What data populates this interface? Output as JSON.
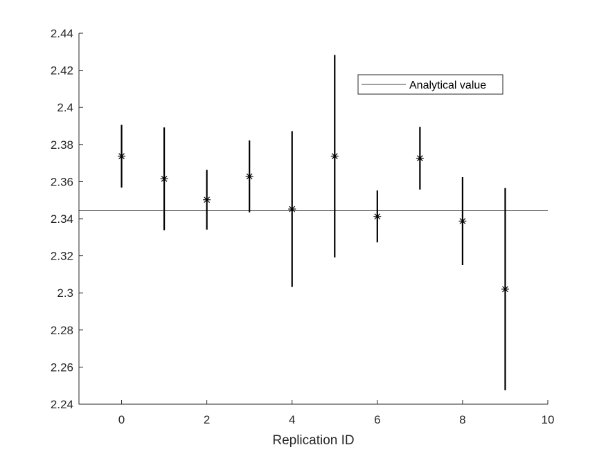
{
  "chart_data": {
    "type": "scatter",
    "title": "",
    "xlabel": "Replication ID",
    "ylabel": "",
    "xlim": [
      -1,
      10
    ],
    "ylim": [
      2.24,
      2.44
    ],
    "xticks": [
      0,
      2,
      4,
      6,
      8,
      10
    ],
    "yticks": [
      2.24,
      2.26,
      2.28,
      2.3,
      2.32,
      2.34,
      2.36,
      2.38,
      2.4,
      2.42,
      2.44
    ],
    "xtick_labels": [
      "0",
      "2",
      "4",
      "6",
      "8",
      "10"
    ],
    "ytick_labels": [
      "2.24",
      "2.26",
      "2.28",
      "2.3",
      "2.32",
      "2.34",
      "2.36",
      "2.38",
      "2.4",
      "2.42",
      "2.44"
    ],
    "grid": false,
    "legend_position": "top-right",
    "marker": "asterisk",
    "series": [
      {
        "x": [
          0,
          1,
          2,
          3,
          4,
          5,
          6,
          7,
          8,
          9
        ],
        "y": [
          2.3737,
          2.3615,
          2.3502,
          2.3628,
          2.3452,
          2.3737,
          2.3412,
          2.3726,
          2.3387,
          2.302
        ],
        "lower": [
          2.3568,
          2.3338,
          2.3341,
          2.3434,
          2.3032,
          2.3191,
          2.3272,
          2.3557,
          2.315,
          2.2475
        ],
        "upper": [
          2.3906,
          2.3892,
          2.3663,
          2.3822,
          2.3872,
          2.4283,
          2.3552,
          2.3895,
          2.3624,
          2.3565
        ],
        "color": "#000000"
      }
    ],
    "reference_line": {
      "name": "Analytical value",
      "y": 2.3443,
      "color": "#000000"
    }
  }
}
